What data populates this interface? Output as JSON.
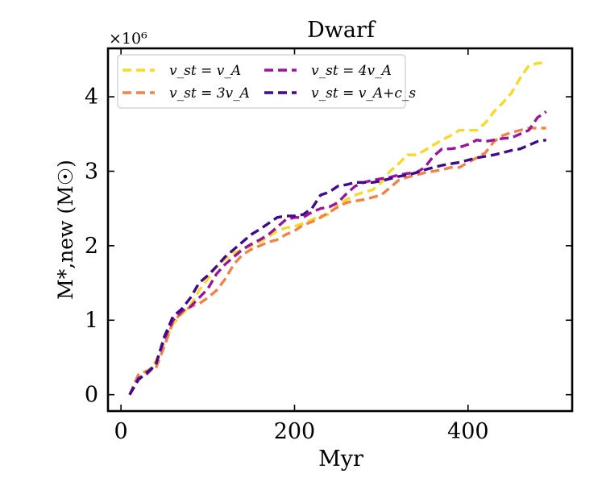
{
  "chart_data": {
    "type": "line",
    "title": "Dwarf",
    "xlabel": "Myr",
    "ylabel": "M*,new (M☉)",
    "y_multiplier_label": "×10⁶",
    "xlim": [
      -15,
      520
    ],
    "ylim": [
      -0.22,
      4.65
    ],
    "xticks": [
      0,
      200,
      400
    ],
    "yticks": [
      0,
      1,
      2,
      3,
      4
    ],
    "legend": {
      "position": "top-left",
      "columns": 2
    },
    "series": [
      {
        "name": "v_st = v_A",
        "color": "#f7d92a",
        "x": [
          10,
          20,
          30,
          40,
          50,
          60,
          70,
          80,
          90,
          100,
          110,
          120,
          130,
          140,
          150,
          160,
          170,
          180,
          190,
          200,
          210,
          220,
          230,
          240,
          250,
          260,
          270,
          280,
          290,
          300,
          310,
          320,
          330,
          340,
          350,
          360,
          370,
          380,
          390,
          400,
          410,
          420,
          430,
          440,
          450,
          460,
          470,
          480,
          490
        ],
        "y": [
          0.0,
          0.25,
          0.3,
          0.45,
          0.7,
          0.95,
          1.08,
          1.2,
          1.4,
          1.55,
          1.72,
          1.82,
          1.9,
          1.95,
          2.0,
          2.05,
          2.12,
          2.2,
          2.24,
          2.26,
          2.3,
          2.35,
          2.4,
          2.42,
          2.55,
          2.62,
          2.68,
          2.72,
          2.75,
          2.85,
          3.0,
          3.1,
          3.22,
          3.22,
          3.28,
          3.35,
          3.42,
          3.48,
          3.55,
          3.55,
          3.55,
          3.65,
          3.8,
          3.92,
          4.05,
          4.25,
          4.42,
          4.45,
          4.46
        ]
      },
      {
        "name": "v_st = 3v_A",
        "color": "#f0824a",
        "x": [
          10,
          20,
          30,
          40,
          50,
          60,
          70,
          80,
          90,
          100,
          110,
          120,
          130,
          140,
          150,
          160,
          170,
          180,
          190,
          200,
          210,
          220,
          230,
          240,
          250,
          260,
          270,
          280,
          290,
          300,
          310,
          320,
          330,
          340,
          350,
          360,
          370,
          380,
          390,
          400,
          410,
          420,
          430,
          440,
          450,
          460,
          470,
          480,
          490
        ],
        "y": [
          0.0,
          0.27,
          0.32,
          0.35,
          0.65,
          0.98,
          1.1,
          1.18,
          1.22,
          1.3,
          1.4,
          1.55,
          1.75,
          1.88,
          1.95,
          2.0,
          2.05,
          2.08,
          2.15,
          2.2,
          2.28,
          2.32,
          2.38,
          2.45,
          2.52,
          2.58,
          2.6,
          2.62,
          2.65,
          2.68,
          2.78,
          2.88,
          2.92,
          2.95,
          2.98,
          3.0,
          3.02,
          3.05,
          3.05,
          3.12,
          3.18,
          3.25,
          3.4,
          3.48,
          3.52,
          3.55,
          3.58,
          3.58,
          3.58
        ]
      },
      {
        "name": "v_st = 4v_A",
        "color": "#9a149c",
        "x": [
          10,
          20,
          30,
          40,
          50,
          60,
          70,
          80,
          90,
          100,
          110,
          120,
          130,
          140,
          150,
          160,
          170,
          180,
          190,
          200,
          210,
          220,
          230,
          240,
          250,
          260,
          270,
          280,
          290,
          300,
          310,
          320,
          330,
          340,
          350,
          360,
          370,
          380,
          390,
          400,
          410,
          420,
          430,
          440,
          450,
          460,
          470,
          480,
          490
        ],
        "y": [
          0.0,
          0.22,
          0.28,
          0.4,
          0.75,
          1.0,
          1.12,
          1.18,
          1.3,
          1.42,
          1.62,
          1.75,
          1.85,
          1.95,
          2.02,
          2.08,
          2.15,
          2.25,
          2.35,
          2.38,
          2.38,
          2.45,
          2.5,
          2.52,
          2.58,
          2.7,
          2.8,
          2.85,
          2.88,
          2.9,
          2.92,
          2.95,
          2.97,
          2.98,
          3.05,
          3.2,
          3.3,
          3.3,
          3.32,
          3.36,
          3.42,
          3.4,
          3.42,
          3.44,
          3.45,
          3.5,
          3.55,
          3.72,
          3.8
        ]
      },
      {
        "name": "v_st = v_A+c_s",
        "color": "#3f0a8c",
        "x": [
          10,
          20,
          30,
          40,
          50,
          60,
          70,
          80,
          90,
          100,
          110,
          120,
          130,
          140,
          150,
          160,
          170,
          180,
          190,
          200,
          210,
          220,
          230,
          240,
          250,
          260,
          270,
          280,
          290,
          300,
          310,
          320,
          330,
          340,
          350,
          360,
          370,
          380,
          390,
          400,
          410,
          420,
          430,
          440,
          450,
          460,
          470,
          480,
          490
        ],
        "y": [
          0.0,
          0.2,
          0.3,
          0.4,
          0.78,
          1.05,
          1.15,
          1.3,
          1.5,
          1.6,
          1.72,
          1.85,
          1.95,
          2.05,
          2.15,
          2.22,
          2.3,
          2.38,
          2.4,
          2.4,
          2.42,
          2.5,
          2.68,
          2.72,
          2.8,
          2.82,
          2.85,
          2.85,
          2.85,
          2.87,
          2.9,
          2.93,
          2.95,
          2.98,
          3.02,
          3.05,
          3.08,
          3.1,
          3.12,
          3.15,
          3.18,
          3.2,
          3.22,
          3.25,
          3.28,
          3.3,
          3.35,
          3.4,
          3.42
        ]
      }
    ]
  }
}
